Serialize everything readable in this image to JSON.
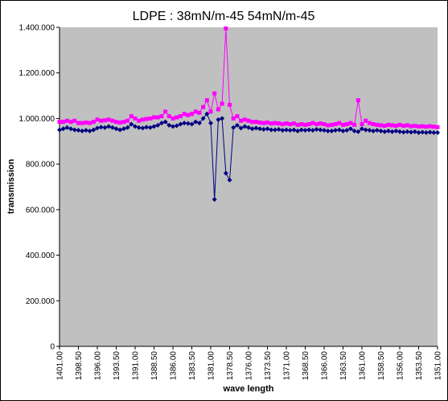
{
  "chart_data": {
    "type": "line",
    "title": "LDPE : 38mN/m-45 54mN/m-45",
    "xlabel": "wave length",
    "ylabel": "transmission",
    "ylim": [
      0,
      1400
    ],
    "yticks": [
      "0",
      "200.000",
      "400.000",
      "600.000",
      "800.000",
      "1.000.000",
      "1.200.000",
      "1.400.000"
    ],
    "xticks": [
      "1401.00",
      "1398.50",
      "1396.00",
      "1393.50",
      "1391.00",
      "1388.50",
      "1386.00",
      "1383.50",
      "1381.00",
      "1378.50",
      "1376.00",
      "1373.50",
      "1371.00",
      "1368.50",
      "1366.00",
      "1363.50",
      "1361.00",
      "1358.50",
      "1356.00",
      "1353.50",
      "1351.00"
    ],
    "xlim": [
      1401.0,
      1351.0
    ],
    "x_step": 0.5,
    "grid": false,
    "plot_background": "#c0c0c0",
    "series": [
      {
        "color": "#000080",
        "marker": "diamond",
        "values": [
          950,
          955,
          960,
          955,
          950,
          948,
          945,
          948,
          945,
          950,
          958,
          962,
          960,
          965,
          960,
          955,
          950,
          955,
          960,
          975,
          965,
          960,
          958,
          962,
          960,
          965,
          970,
          980,
          985,
          970,
          965,
          968,
          975,
          980,
          978,
          975,
          985,
          980,
          1000,
          1020,
          980,
          645,
          995,
          1000,
          760,
          730,
          960,
          970,
          958,
          965,
          960,
          955,
          958,
          955,
          952,
          955,
          950,
          950,
          952,
          948,
          950,
          948,
          950,
          945,
          950,
          948,
          950,
          948,
          952,
          950,
          948,
          945,
          945,
          948,
          950,
          945,
          948,
          955,
          945,
          942,
          955,
          950,
          948,
          945,
          948,
          945,
          942,
          945,
          942,
          945,
          942,
          940,
          942,
          940,
          942,
          938,
          940,
          938,
          940,
          938,
          938
        ]
      },
      {
        "color": "#ff00ff",
        "marker": "square",
        "values": [
          985,
          985,
          990,
          985,
          990,
          980,
          980,
          982,
          980,
          985,
          995,
          990,
          992,
          995,
          990,
          985,
          982,
          985,
          990,
          1010,
          1000,
          990,
          995,
          998,
          1000,
          1005,
          1005,
          1010,
          1030,
          1010,
          1000,
          1005,
          1010,
          1020,
          1015,
          1020,
          1030,
          1025,
          1050,
          1080,
          1030,
          1110,
          1040,
          1065,
          1395,
          1060,
          1000,
          1010,
          990,
          995,
          990,
          985,
          985,
          982,
          980,
          982,
          978,
          980,
          978,
          975,
          978,
          975,
          978,
          972,
          975,
          972,
          975,
          980,
          975,
          978,
          975,
          970,
          972,
          975,
          980,
          972,
          975,
          980,
          972,
          1080,
          975,
          990,
          980,
          975,
          972,
          970,
          968,
          972,
          970,
          968,
          972,
          968,
          970,
          966,
          968,
          965,
          966,
          964,
          966,
          964,
          962
        ]
      }
    ]
  }
}
